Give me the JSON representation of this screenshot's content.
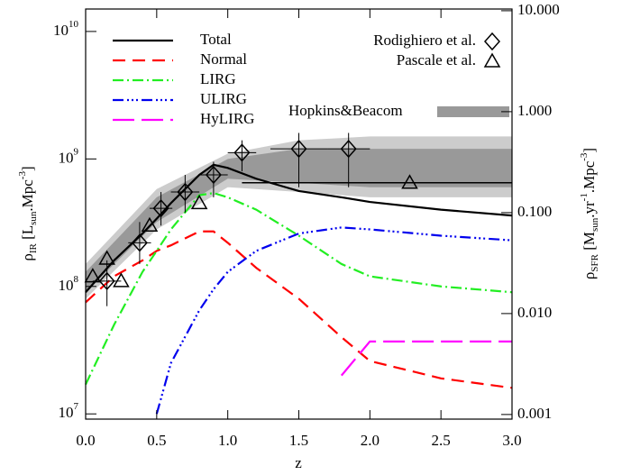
{
  "chart_data": {
    "type": "line",
    "x_label": "z",
    "y_label": [
      "ρ",
      "IR",
      " [L",
      "sun",
      ".Mpc",
      "-3",
      "]"
    ],
    "y2_label": [
      "ρ",
      "SFR",
      " [M",
      "sun",
      ".yr",
      "-1",
      ".Mpc",
      "-3",
      "]"
    ],
    "log_y": true,
    "xlim": [
      0,
      3
    ],
    "xticks": [
      {
        "value": 0,
        "label": "0.0"
      },
      {
        "value": 0.5,
        "label": "0.5"
      },
      {
        "value": 1,
        "label": "1.0"
      },
      {
        "value": 1.5,
        "label": "1.5"
      },
      {
        "value": 2,
        "label": "2.0"
      },
      {
        "value": 2.5,
        "label": "2.5"
      },
      {
        "value": 3,
        "label": "3.0"
      }
    ],
    "ylim": [
      9100000,
      15000000000
    ],
    "yticks": [
      {
        "value": 10000000,
        "label": "10",
        "exponent": "7"
      },
      {
        "value": 100000000,
        "label": "10",
        "exponent": "8"
      },
      {
        "value": 1000000000,
        "label": "10",
        "exponent": "9"
      },
      {
        "value": 10000000000,
        "label": "10",
        "exponent": "10"
      }
    ],
    "y2lim": [
      0.0009,
      10.4
    ],
    "y2ticks": [
      0.001,
      {
        "value": 0.01,
        "label": "0.010"
      },
      {
        "value": 0.1,
        "label": "0.100"
      },
      {
        "value": 1,
        "label": "1.000"
      },
      {
        "value": 10,
        "label": "10.000"
      }
    ],
    "x": [
      0,
      0.2,
      0.4,
      0.5,
      0.6,
      0.8,
      0.9,
      1.0,
      1.2,
      1.5,
      1.8,
      2.0,
      2.5,
      3.0
    ],
    "series": [
      {
        "name": "Total",
        "color": "#000000",
        "dash": "solid",
        "values": [
          90000000,
          160000000,
          260000000,
          340000000,
          450000000,
          750000000,
          900000000,
          850000000,
          700000000,
          560000000,
          500000000,
          460000000,
          400000000,
          360000000
        ]
      },
      {
        "name": "Normal",
        "color": "#ff0000",
        "dash": "dash",
        "values": [
          75000000,
          120000000,
          160000000,
          190000000,
          210000000,
          270000000,
          270000000,
          220000000,
          140000000,
          80000000,
          40000000,
          26000000,
          19000000,
          16000000
        ]
      },
      {
        "name": "LIRG",
        "color": "#22ee22",
        "dash": "dashdot",
        "values": [
          17000000,
          50000000,
          130000000,
          190000000,
          280000000,
          520000000,
          540000000,
          500000000,
          400000000,
          250000000,
          150000000,
          120000000,
          100000000,
          90000000
        ]
      },
      {
        "name": "ULIRG",
        "color": "#0000ee",
        "dash": "dashdotdot",
        "values": [
          null,
          null,
          null,
          10000000,
          25000000,
          65000000,
          95000000,
          130000000,
          190000000,
          260000000,
          290000000,
          280000000,
          250000000,
          230000000
        ]
      },
      {
        "name": "HyLIRG",
        "color": "#ff00ff",
        "dash": "longdash",
        "values": [
          null,
          null,
          null,
          null,
          null,
          null,
          null,
          null,
          null,
          null,
          20000000,
          37000000,
          37000000,
          37000000
        ]
      }
    ],
    "band": {
      "name": "Hopkins&Beacom",
      "outer_color": "#cccccc",
      "inner_color": "#999999",
      "x": [
        0,
        0.5,
        1.0,
        1.5,
        2.0,
        2.5,
        3.0
      ],
      "outer_low": [
        80000000,
        280000000,
        600000000,
        550000000,
        500000000,
        500000000,
        500000000
      ],
      "outer_high": [
        150000000,
        580000000,
        1100000000,
        1400000000,
        1500000000,
        1500000000,
        1500000000
      ],
      "inner_low": [
        90000000,
        320000000,
        700000000,
        650000000,
        600000000,
        600000000,
        600000000
      ],
      "inner_high": [
        130000000,
        500000000,
        1000000000,
        1200000000,
        1200000000,
        1200000000,
        1200000000
      ],
      "fit_x": [
        1.1,
        3.0
      ],
      "fit_values": [
        650000000,
        650000000
      ]
    },
    "markers": [
      {
        "name": "Rodighiero et al.",
        "marker": "diamond",
        "x": [
          0.15,
          0.38,
          0.53,
          0.7,
          0.9,
          1.1,
          1.5,
          1.85
        ],
        "values": [
          110000000,
          220000000,
          410000000,
          550000000,
          750000000,
          1120000000,
          1200000000,
          1200000000
        ],
        "xerr": [
          0.1,
          0.08,
          0.08,
          0.1,
          0.1,
          0.1,
          0.2,
          0.15
        ],
        "ylow": [
          70000000,
          150000000,
          300000000,
          380000000,
          500000000,
          800000000,
          600000000,
          600000000
        ],
        "yhigh": [
          160000000,
          320000000,
          550000000,
          750000000,
          950000000,
          1400000000,
          1600000000,
          1600000000
        ]
      },
      {
        "name": "Pascale et al.",
        "marker": "triangle",
        "x": [
          0.05,
          0.15,
          0.25,
          0.45,
          0.8,
          2.28
        ],
        "values": [
          120000000,
          165000000,
          110000000,
          300000000,
          450000000,
          650000000
        ]
      }
    ]
  }
}
